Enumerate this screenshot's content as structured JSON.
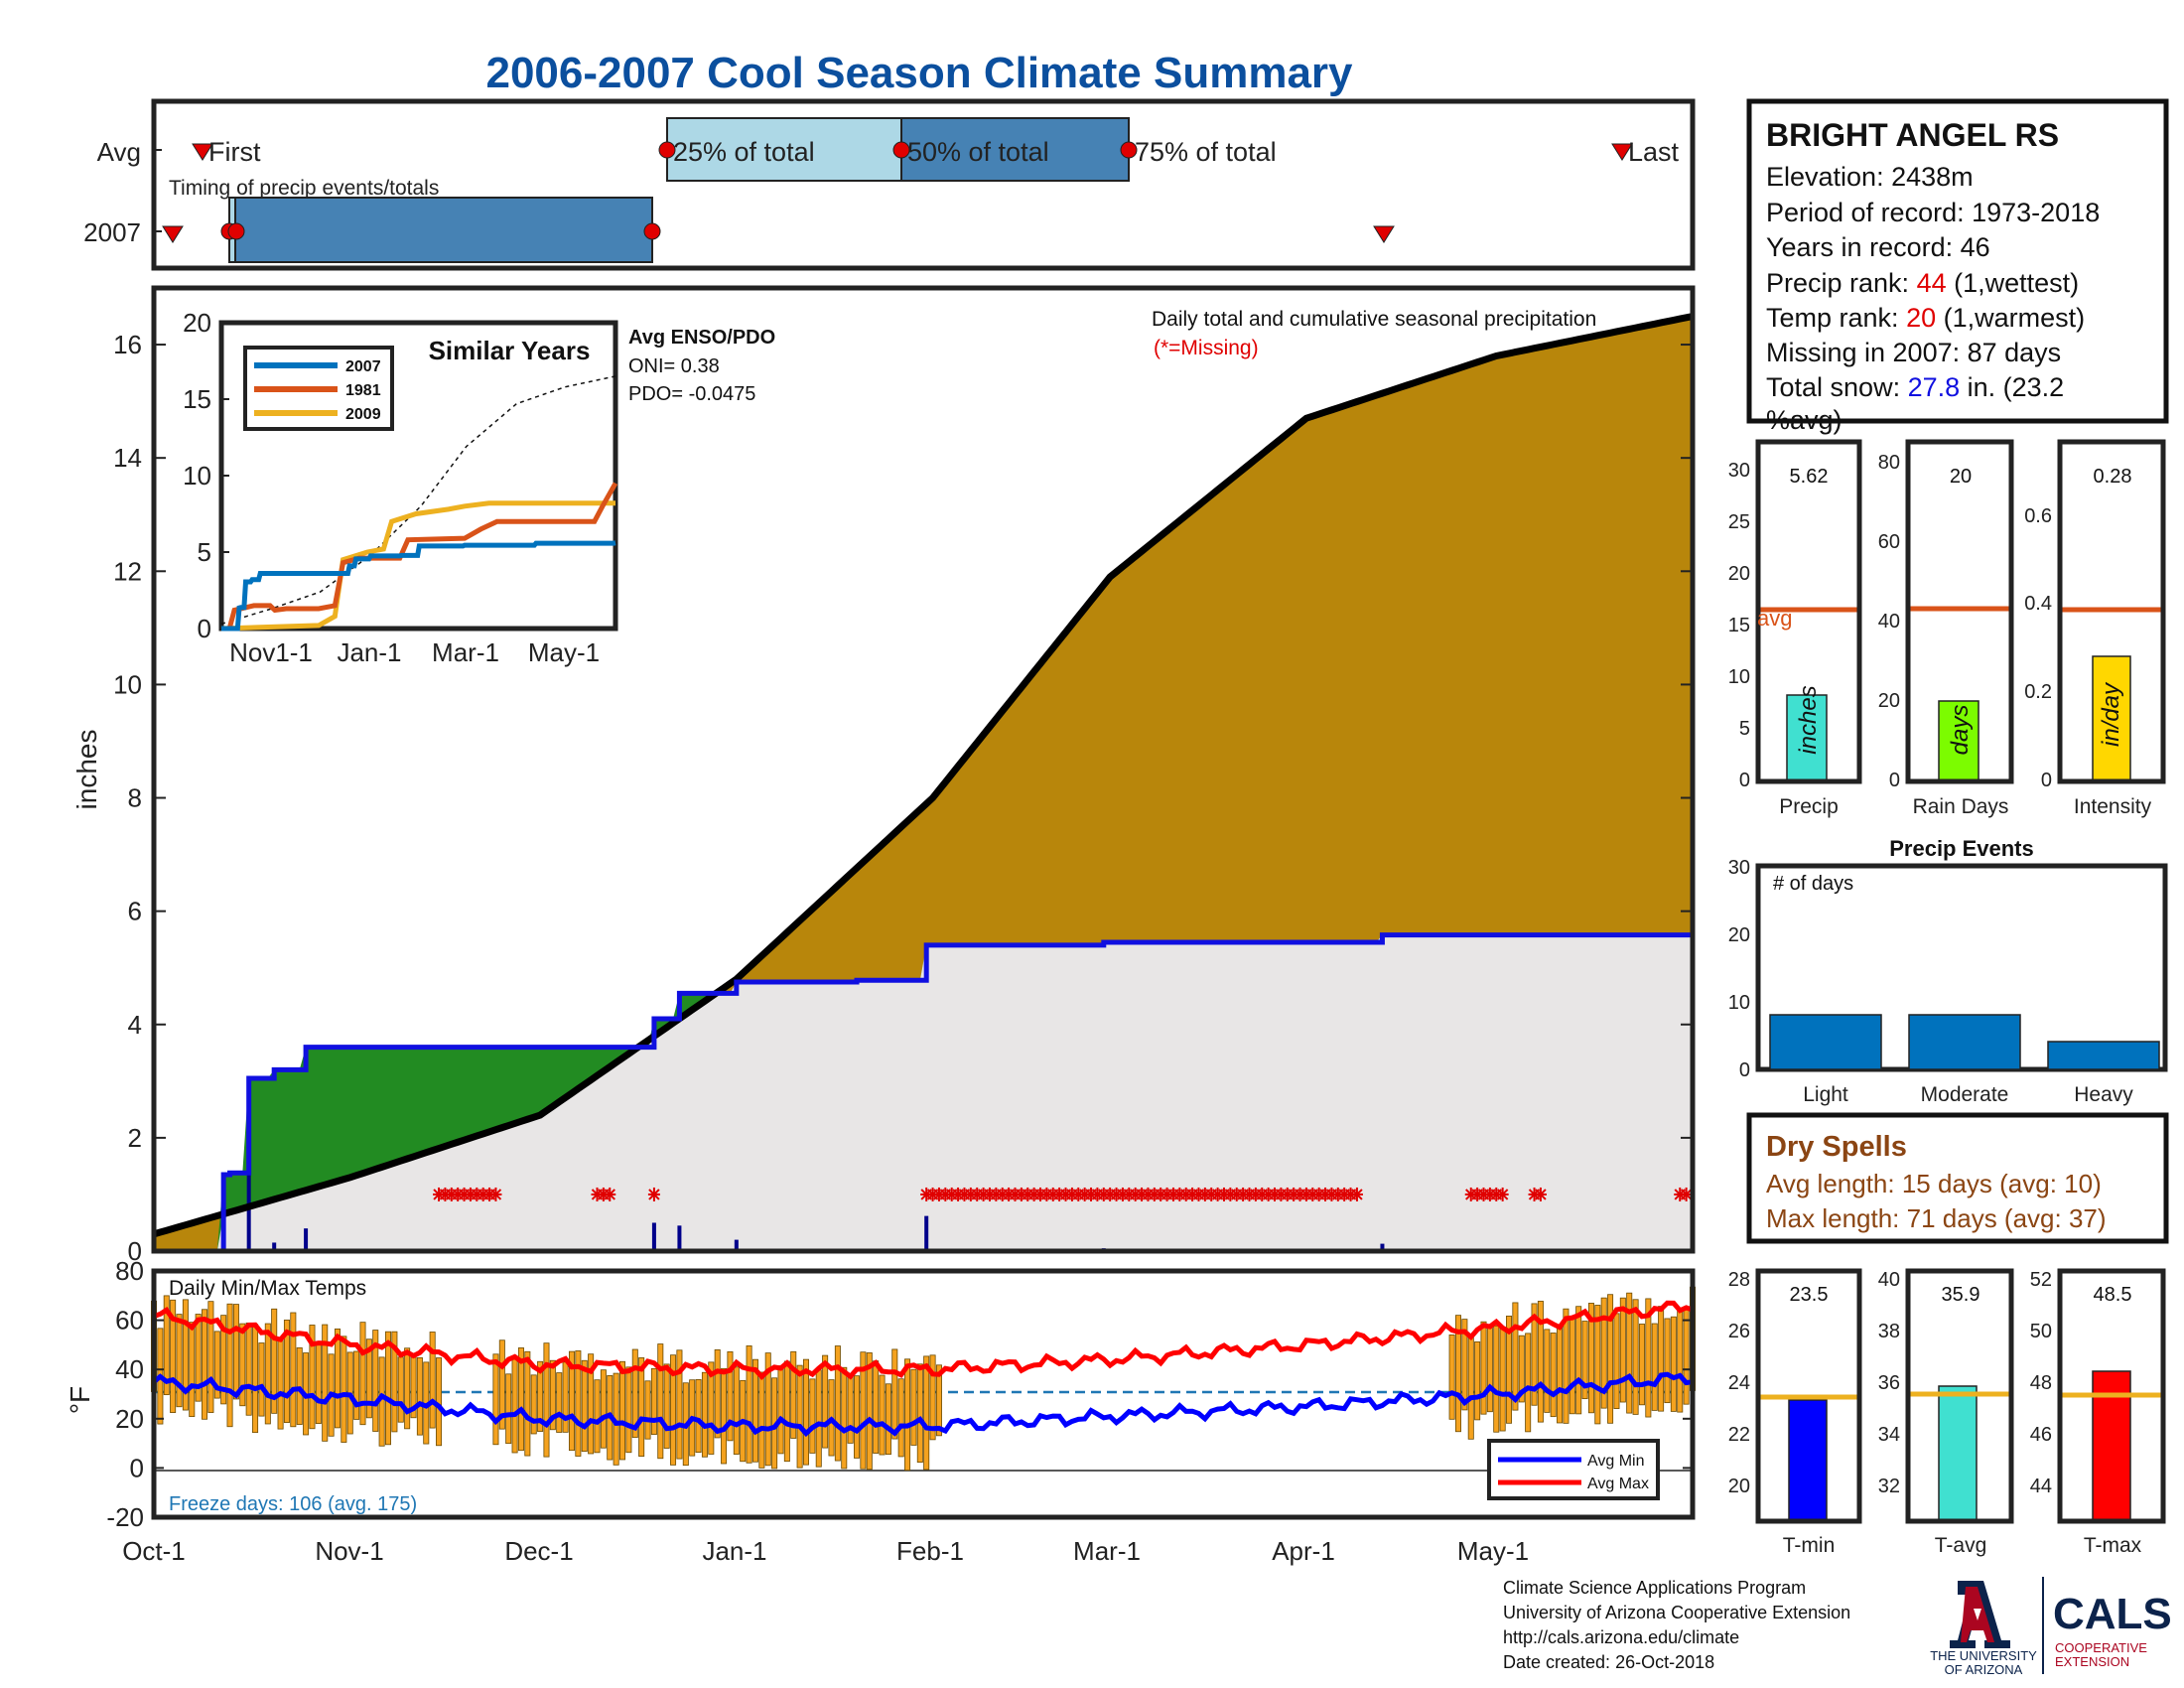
{
  "title": "2006-2007 Cool Season Climate Summary",
  "timing": {
    "row_labels": [
      "Avg",
      "2007"
    ],
    "subtitle": "Timing of precip events/totals",
    "avg_labels": [
      "First",
      "25% of total",
      "50% of total",
      "75% of total",
      "Last"
    ]
  },
  "station": {
    "name": "BRIGHT ANGEL RS",
    "elevation": "Elevation: 2438m",
    "period": "Period of record: 1973-2018",
    "years": "Years in record: 46",
    "precip_rank_label": "Precip rank: ",
    "precip_rank_value": "44",
    "precip_rank_suffix": " (1,wettest)",
    "temp_rank_label": "Temp rank: ",
    "temp_rank_value": "20",
    "temp_rank_suffix": " (1,warmest)",
    "missing": "Missing in 2007: 87 days",
    "snow_label": "Total snow: ",
    "snow_value": "27.8",
    "snow_suffix1": " in. (23.2",
    "snow_suffix2": "%avg)"
  },
  "main": {
    "ylabel": "inches",
    "note": "Daily total and cumulative seasonal precipitation",
    "missing_note": "(*=Missing)",
    "x_ticks": [
      "Oct-1",
      "Nov-1",
      "Dec-1",
      "Jan-1",
      "Feb-1",
      "Mar-1",
      "Apr-1",
      "May-1"
    ],
    "y_ticks": [
      "0",
      "2",
      "4",
      "6",
      "8",
      "10",
      "12",
      "14",
      "16"
    ]
  },
  "inset": {
    "title": "Similar Years",
    "legend": [
      "2007",
      "1981",
      "2009"
    ],
    "x_ticks": [
      "Nov1-1",
      "Jan-1",
      "Mar-1",
      "May-1"
    ],
    "y_ticks": [
      "0",
      "5",
      "10",
      "15",
      "20"
    ],
    "enso_title": "Avg ENSO/PDO",
    "oni": "ONI= 0.38",
    "pdo": "PDO= -0.0475"
  },
  "summary_bars": {
    "precip": {
      "value_label": "5.62",
      "unit": "inches",
      "label": "Precip",
      "ticks": [
        "0",
        "5",
        "10",
        "15",
        "20",
        "25",
        "30"
      ],
      "avg_label": "avg"
    },
    "rain_days": {
      "value_label": "20",
      "unit": "days",
      "label": "Rain Days",
      "ticks": [
        "0",
        "20",
        "40",
        "60",
        "80"
      ]
    },
    "intensity": {
      "value_label": "0.28",
      "unit": "in/day",
      "label": "Intensity",
      "ticks": [
        "0",
        "0.2",
        "0.4",
        "0.6"
      ]
    }
  },
  "events": {
    "title": "Precip Events",
    "ylabel": "# of days",
    "ticks": [
      "0",
      "10",
      "20",
      "30"
    ],
    "categories": [
      "Light",
      "Moderate",
      "Heavy"
    ]
  },
  "dry_spells": {
    "title": "Dry Spells",
    "avg_length": "Avg length: 15 days (avg: 10)",
    "max_length": "Max length: 71 days (avg: 37)"
  },
  "temps": {
    "title": "Daily Min/Max Temps",
    "ylabel": "°F",
    "freeze": "Freeze days: 106 (avg. 175)",
    "legend": [
      "Avg Min",
      "Avg Max"
    ],
    "y_ticks": [
      "-20",
      "0",
      "20",
      "40",
      "60",
      "80"
    ]
  },
  "temp_bars": {
    "tmin": {
      "value_label": "23.5",
      "label": "T-min",
      "ticks": [
        "20",
        "22",
        "24",
        "26",
        "28"
      ]
    },
    "tavg": {
      "value_label": "35.9",
      "label": "T-avg",
      "ticks": [
        "32",
        "34",
        "36",
        "38",
        "40"
      ]
    },
    "tmax": {
      "value_label": "48.5",
      "label": "T-max",
      "ticks": [
        "44",
        "46",
        "48",
        "50",
        "52"
      ]
    }
  },
  "footer": {
    "line1": "Climate Science Applications Program",
    "line2": "University of Arizona Cooperative Extension",
    "line3": "http://cals.arizona.edu/climate",
    "line4": " Date created: 26-Oct-2018",
    "ua_logo_text1": "THE UNIVERSITY",
    "ua_logo_text2": "OF ARIZONA",
    "cals": "CALS",
    "cals_sub1": "COOPERATIVE",
    "cals_sub2": "EXTENSION"
  },
  "colors": {
    "title": "#0b4f9e",
    "cumulative_fill": "#b8860b",
    "green_fill": "#228b22",
    "avg_fill": "#e8e6e6",
    "avg_line": "#1010e0",
    "missing": "#e00000",
    "tmin": "#0000ff",
    "tmax": "#ff0000",
    "bar_orange": "#f4a21f"
  },
  "chart_data": [
    {
      "type": "area",
      "title": "Daily total and cumulative seasonal precipitation",
      "ylabel": "inches",
      "xlim": [
        "Oct-1",
        "Jun-1"
      ],
      "ylim": [
        0,
        17
      ],
      "series": [
        {
          "name": "2007",
          "x": [
            "Oct-1",
            "Oct-12",
            "Oct-13",
            "Oct-16",
            "Oct-20",
            "Oct-25",
            "Nov-1",
            "Dec-1",
            "Dec-19",
            "Dec-23",
            "Jan-1",
            "Jan-20",
            "Jan-31",
            "Feb-28",
            "Apr-13",
            "Jun-1"
          ],
          "y": [
            0,
            1.35,
            1.38,
            3.05,
            3.2,
            3.6,
            3.6,
            3.6,
            4.1,
            4.55,
            4.75,
            4.78,
            5.4,
            5.45,
            5.58,
            5.6
          ]
        },
        {
          "x": [
            "Oct-1",
            "Nov-1",
            "Dec-1",
            "Jan-1",
            "Feb-1",
            "Mar-1",
            "Apr-1",
            "May-1",
            "Jun-1"
          ],
          "y": [
            0.3,
            1.3,
            2.4,
            4.8,
            8.0,
            11.9,
            14.7,
            15.8,
            16.5
          ]
        }
      ]
    },
    {
      "type": "bar",
      "title": "Precip Events",
      "ylabel": "# of days",
      "categories": [
        "Light",
        "Moderate",
        "Heavy"
      ],
      "values": [
        8,
        8,
        4
      ],
      "ylim": [
        0,
        30
      ]
    },
    {
      "type": "bar",
      "categories": [
        "Precip",
        "Rain Days",
        "Intensity"
      ],
      "values": [
        5.62,
        20,
        0.28
      ],
      "avg": [
        16.3,
        41.5,
        0.395
      ]
    },
    {
      "type": "bar",
      "categories": [
        "T-min",
        "T-avg",
        "T-max"
      ],
      "values": [
        23.5,
        35.9,
        48.5
      ],
      "avg": [
        23.6,
        35.6,
        47.6
      ]
    },
    {
      "type": "line",
      "title": "Daily Min/Max Temps",
      "ylabel": "°F",
      "ylim": [
        -20,
        80
      ],
      "series": [
        {
          "name": "Avg Min",
          "x": [
            "Oct-1",
            "Nov-1",
            "Dec-1",
            "Jan-1",
            "Feb-1",
            "Mar-1",
            "Apr-1",
            "May-1",
            "Jun-1"
          ],
          "y": [
            35,
            28,
            20,
            17,
            17,
            21,
            25,
            30,
            37
          ]
        },
        {
          "name": "Avg Max",
          "x": [
            "Oct-1",
            "Nov-1",
            "Dec-1",
            "Jan-1",
            "Feb-1",
            "Mar-1",
            "Apr-1",
            "May-1",
            "Jun-1"
          ],
          "y": [
            62,
            50,
            42,
            40,
            40,
            44,
            50,
            57,
            66
          ]
        }
      ]
    }
  ]
}
